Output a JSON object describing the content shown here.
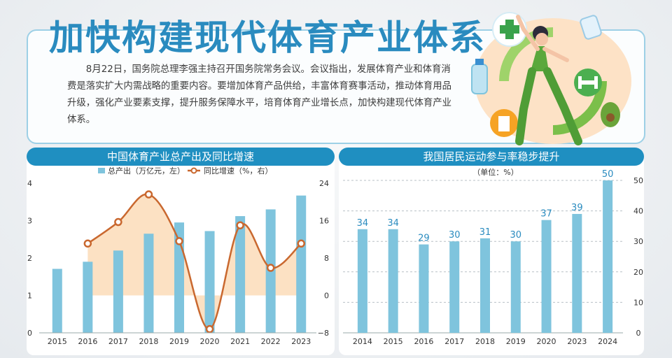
{
  "headline": "加快构建现代体育产业体系",
  "intro": "8月22日，国务院总理李强主持召开国务院常务会议。会议指出，发展体育产业和体育消费是落实扩大内需战略的重要内容。要增加体育产品供给，丰富体育赛事活动，推动体育用品升级，强化产业要素支撑，提升服务保障水平，培育体育产业增长点，加快构建现代体育产业体系。",
  "colors": {
    "accent": "#1f8fc1",
    "bar": "#7fc4dd",
    "line": "#c9682f",
    "area": "#fcdcb8"
  },
  "illustration": {
    "icons": [
      "plus-icon",
      "water-bottle-icon",
      "dumbbell-icon",
      "avocado-icon",
      "juice-box-icon",
      "milk-bottle-icon",
      "recycle-arrows-icon",
      "exercising-woman-figure"
    ]
  },
  "chart_data": [
    {
      "type": "bar",
      "title": "中国体育产业总产出及同比增速",
      "categories": [
        "2015",
        "2016",
        "2017",
        "2018",
        "2019",
        "2020",
        "2021",
        "2022",
        "2023"
      ],
      "series": [
        {
          "name": "总产出（万亿元，左）",
          "type": "bar",
          "axis": "left",
          "values": [
            1.71,
            1.9,
            2.2,
            2.65,
            2.95,
            2.72,
            3.12,
            3.3,
            3.67
          ]
        },
        {
          "name": "同比增速（%，右）",
          "type": "line",
          "axis": "right",
          "values": [
            null,
            11.1,
            15.7,
            21.6,
            11.6,
            -7.2,
            15.0,
            5.9,
            11.1
          ]
        }
      ],
      "y_left": {
        "min": 0,
        "max": 4,
        "ticks": [
          "0",
          "1",
          "2",
          "3",
          "4"
        ]
      },
      "y_right": {
        "min": -8,
        "max": 24,
        "ticks": [
          "−8",
          "0",
          "8",
          "16",
          "24"
        ]
      },
      "grid": false,
      "legend": "top"
    },
    {
      "type": "bar",
      "title": "我国居民运动参与率稳步提升",
      "unit": "（单位：%）",
      "categories": [
        "2014",
        "2015",
        "2016",
        "2017",
        "2018",
        "2019",
        "2020",
        "2023",
        "2024"
      ],
      "values": [
        34,
        34,
        29,
        30,
        31,
        30,
        37,
        39,
        50
      ],
      "data_labels": [
        "34",
        "34",
        "29",
        "30",
        "31",
        "30",
        "37",
        "39",
        "50"
      ],
      "y": {
        "min": 0,
        "max": 50,
        "ticks": [
          "0",
          "10",
          "20",
          "30",
          "40",
          "50"
        ]
      },
      "grid": true
    }
  ]
}
